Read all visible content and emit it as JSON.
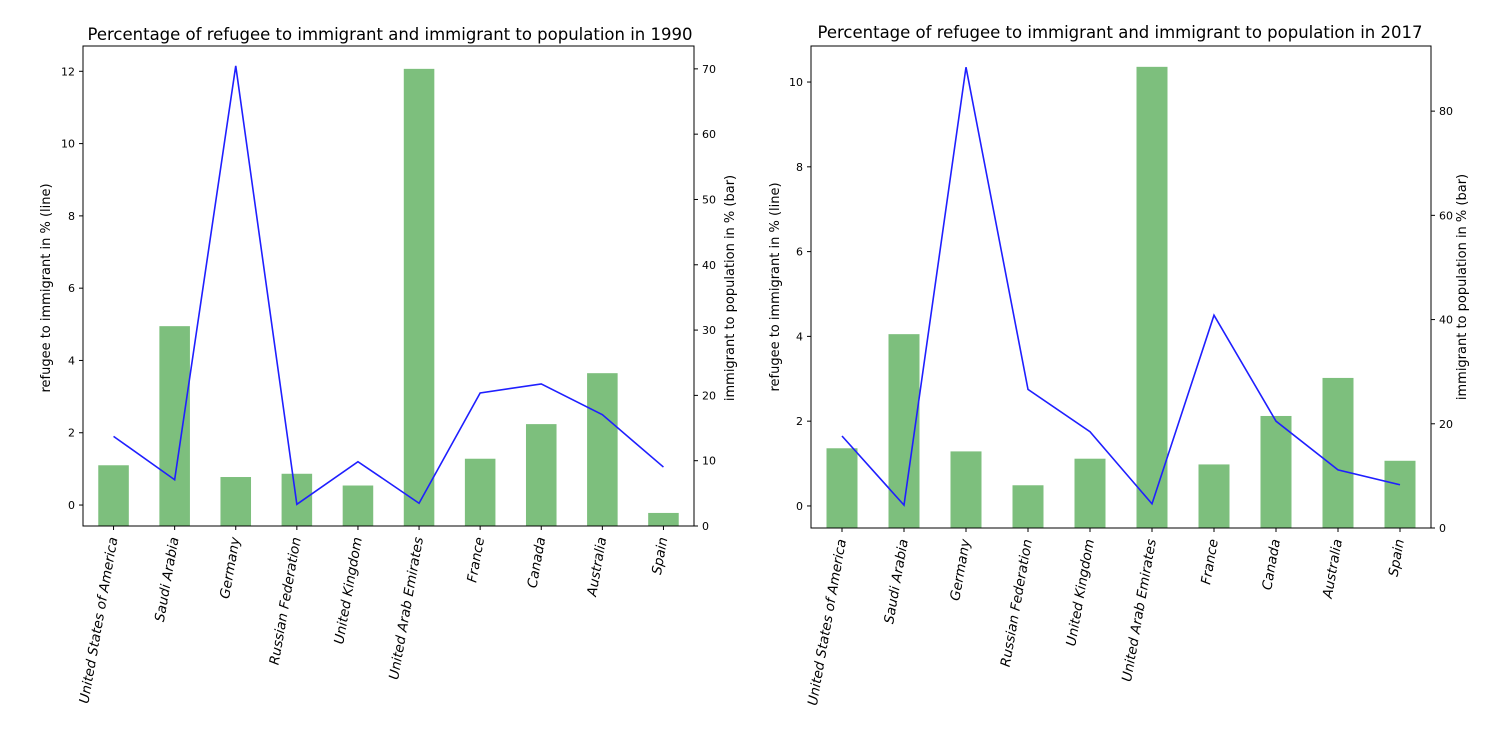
{
  "chart_data": [
    {
      "type": "bar+line",
      "title": "Percentage of refugee to immigrant and immigrant to population in 1990",
      "categories": [
        "United States of America",
        "Saudi Arabia",
        "Germany",
        "Russian Federation",
        "United Kingdom",
        "United Arab Emirates",
        "France",
        "Canada",
        "Australia",
        "Spain"
      ],
      "line": {
        "name": "refugee to immigrant in % (line)",
        "color": "#1f1fff",
        "values": [
          1.9,
          0.7,
          12.15,
          0.02,
          1.2,
          0.05,
          3.1,
          3.35,
          2.5,
          1.05
        ]
      },
      "bars": {
        "name": "immigrant to population in % (bar)",
        "color": "#7dbf7d",
        "values": [
          9.3,
          30.6,
          7.5,
          8.0,
          6.2,
          70.0,
          10.3,
          15.6,
          23.4,
          2.0
        ]
      },
      "ylabel_left": "refugee to immigrant in % (line)",
      "ylabel_right": "immigrant to population in % (bar)",
      "ylim_left": [
        -0.58,
        12.7
      ],
      "ylim_right": [
        0,
        73.5
      ],
      "yticks_left": [
        0,
        2,
        4,
        6,
        8,
        10,
        12
      ],
      "yticks_right": [
        0,
        10,
        20,
        30,
        40,
        50,
        60,
        70
      ]
    },
    {
      "type": "bar+line",
      "title": "Percentage of refugee to immigrant and immigrant to population in 2017",
      "categories": [
        "United States of America",
        "Saudi Arabia",
        "Germany",
        "Russian Federation",
        "United Kingdom",
        "United Arab Emirates",
        "France",
        "Canada",
        "Australia",
        "Spain"
      ],
      "line": {
        "name": "refugee to immigrant in % (line)",
        "color": "#1f1fff",
        "values": [
          1.65,
          0.02,
          10.35,
          2.75,
          1.75,
          0.05,
          4.5,
          2.0,
          0.85,
          0.5
        ]
      },
      "bars": {
        "name": "immigrant to population in % (bar)",
        "color": "#7dbf7d",
        "values": [
          15.3,
          37.2,
          14.7,
          8.2,
          13.3,
          88.5,
          12.2,
          21.5,
          28.8,
          12.9
        ]
      },
      "ylabel_left": "refugee to immigrant in % (line)",
      "ylabel_right": "immigrant to population in % (bar)",
      "ylim_left": [
        -0.52,
        10.85
      ],
      "ylim_right": [
        0,
        92.5
      ],
      "yticks_left": [
        0,
        2,
        4,
        6,
        8,
        10
      ],
      "yticks_right": [
        0,
        20,
        40,
        60,
        80
      ]
    }
  ]
}
